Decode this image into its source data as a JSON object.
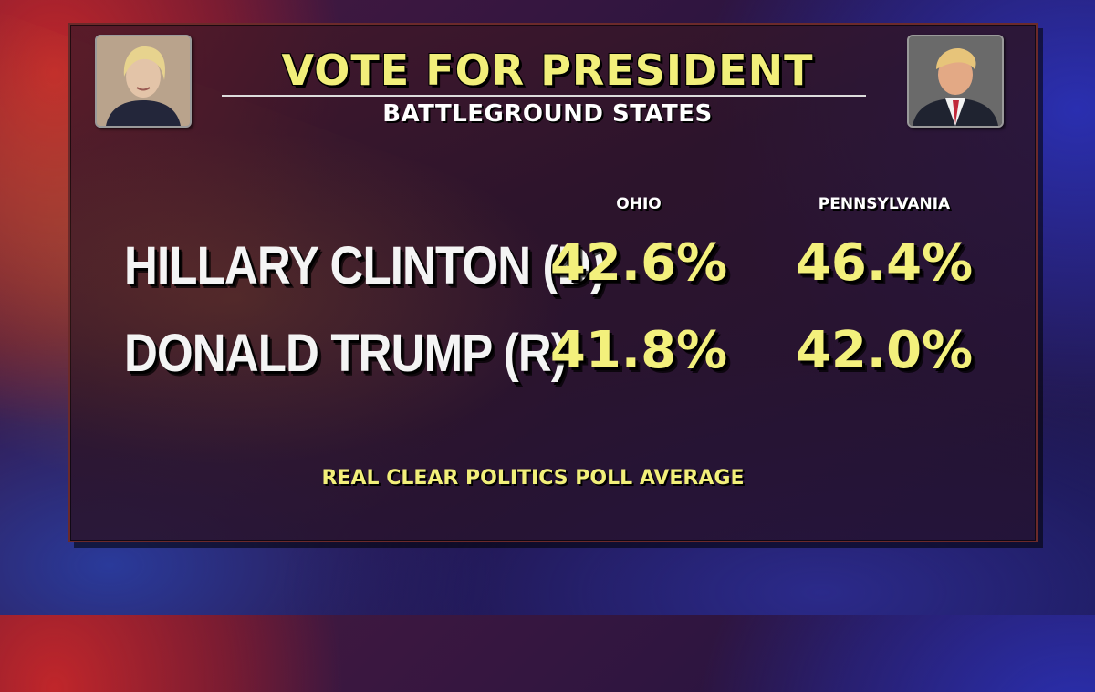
{
  "graphic": {
    "title": "VOTE FOR PRESIDENT",
    "subtitle": "BATTLEGROUND STATES",
    "source": "REAL CLEAR POLITICS POLL AVERAGE"
  },
  "columns": [
    "OHIO",
    "PENNSYLVANIA"
  ],
  "candidates": [
    {
      "name": "HILLARY CLINTON (D)",
      "values": [
        "42.6%",
        "46.4%"
      ]
    },
    {
      "name": "DONALD TRUMP (R)",
      "values": [
        "41.8%",
        "42.0%"
      ]
    }
  ],
  "colors": {
    "title": "#f2ef7a",
    "values": "#f3f07c",
    "names": "#f4f4f4",
    "panel_border": "#6b2a2a"
  }
}
